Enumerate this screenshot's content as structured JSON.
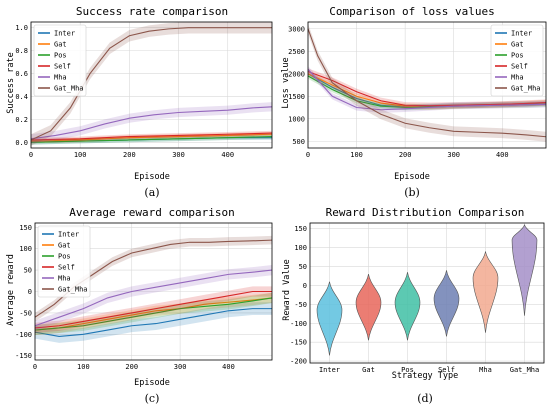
{
  "colors": {
    "Inter": "#1f77b4",
    "Gat": "#ff7f0e",
    "Pos": "#2ca02c",
    "Self": "#d62728",
    "Mha": "#9467bd",
    "Gat_Mha": "#8c564b",
    "violin": [
      "#5bc0de",
      "#e8665a",
      "#3fbfa5",
      "#6d7fb3",
      "#f2a98f",
      "#a58fc8"
    ]
  },
  "chart_data": [
    {
      "id": "a",
      "type": "line",
      "title": "Success rate comparison",
      "xlabel": "Episode",
      "ylabel": "Success rate",
      "caption": "(a)",
      "xlim": [
        0,
        490
      ],
      "ylim": [
        -0.05,
        1.05
      ],
      "xticks": [
        0,
        100,
        200,
        300,
        400
      ],
      "yticks": [
        0.0,
        0.2,
        0.4,
        0.6,
        0.8,
        1.0
      ],
      "ytick_labels": [
        "0.0",
        "0.2",
        "0.4",
        "0.6",
        "0.8",
        "1.0"
      ],
      "grid": true,
      "legend": "upper-left",
      "series": [
        {
          "name": "Inter",
          "x": [
            0,
            100,
            200,
            300,
            400,
            490
          ],
          "y": [
            0.0,
            0.01,
            0.02,
            0.03,
            0.04,
            0.04
          ],
          "band": 0.02
        },
        {
          "name": "Gat",
          "x": [
            0,
            100,
            200,
            300,
            400,
            490
          ],
          "y": [
            0.01,
            0.02,
            0.04,
            0.05,
            0.06,
            0.07
          ],
          "band": 0.02
        },
        {
          "name": "Pos",
          "x": [
            0,
            100,
            200,
            300,
            400,
            490
          ],
          "y": [
            0.0,
            0.01,
            0.02,
            0.03,
            0.04,
            0.05
          ],
          "band": 0.02
        },
        {
          "name": "Self",
          "x": [
            0,
            100,
            200,
            300,
            400,
            490
          ],
          "y": [
            0.02,
            0.03,
            0.05,
            0.06,
            0.07,
            0.08
          ],
          "band": 0.02
        },
        {
          "name": "Mha",
          "x": [
            0,
            50,
            100,
            150,
            200,
            250,
            300,
            350,
            400,
            450,
            490
          ],
          "y": [
            0.03,
            0.06,
            0.1,
            0.16,
            0.21,
            0.24,
            0.26,
            0.27,
            0.28,
            0.3,
            0.31
          ],
          "band": 0.04
        },
        {
          "name": "Gat_Mha",
          "x": [
            0,
            40,
            80,
            120,
            160,
            200,
            240,
            280,
            320,
            360,
            400,
            440,
            490
          ],
          "y": [
            0.02,
            0.1,
            0.3,
            0.6,
            0.82,
            0.93,
            0.97,
            0.99,
            1.0,
            1.0,
            1.0,
            1.0,
            1.0
          ],
          "band": 0.05
        }
      ]
    },
    {
      "id": "b",
      "type": "line",
      "title": "Comparison of loss values",
      "xlabel": "Episode",
      "ylabel": "Loss value",
      "caption": "(b)",
      "xlim": [
        0,
        490
      ],
      "ylim": [
        350,
        3150
      ],
      "xticks": [
        0,
        100,
        200,
        300,
        400
      ],
      "yticks": [
        500,
        1000,
        1500,
        2000,
        2500,
        3000
      ],
      "ytick_labels": [
        "500",
        "1000",
        "1500",
        "2000",
        "2500",
        "3000"
      ],
      "grid": true,
      "legend": "upper-right",
      "series": [
        {
          "name": "Inter",
          "x": [
            0,
            50,
            100,
            150,
            200,
            250,
            300,
            350,
            400,
            450,
            490
          ],
          "y": [
            2000,
            1700,
            1450,
            1300,
            1260,
            1280,
            1300,
            1310,
            1320,
            1330,
            1350
          ],
          "band": 60
        },
        {
          "name": "Gat",
          "x": [
            0,
            50,
            100,
            150,
            200,
            250,
            300,
            350,
            400,
            450,
            490
          ],
          "y": [
            2000,
            1750,
            1500,
            1350,
            1280,
            1260,
            1280,
            1300,
            1320,
            1340,
            1360
          ],
          "band": 60
        },
        {
          "name": "Pos",
          "x": [
            0,
            50,
            100,
            150,
            200,
            250,
            300,
            350,
            400,
            450,
            490
          ],
          "y": [
            1950,
            1650,
            1400,
            1280,
            1250,
            1260,
            1280,
            1290,
            1300,
            1310,
            1320
          ],
          "band": 60
        },
        {
          "name": "Self",
          "x": [
            0,
            50,
            100,
            150,
            200,
            250,
            300,
            350,
            400,
            450,
            490
          ],
          "y": [
            2050,
            1850,
            1600,
            1400,
            1300,
            1290,
            1300,
            1310,
            1320,
            1340,
            1360
          ],
          "band": 70
        },
        {
          "name": "Mha",
          "x": [
            0,
            50,
            100,
            150,
            200,
            250,
            300,
            350,
            400,
            450,
            490
          ],
          "y": [
            2100,
            1500,
            1250,
            1200,
            1220,
            1250,
            1280,
            1290,
            1300,
            1310,
            1320
          ],
          "band": 70
        },
        {
          "name": "Gat_Mha",
          "x": [
            0,
            20,
            50,
            100,
            150,
            200,
            250,
            300,
            350,
            400,
            450,
            490
          ],
          "y": [
            3000,
            2400,
            1800,
            1400,
            1100,
            900,
            800,
            720,
            700,
            680,
            640,
            600
          ],
          "band": 110
        }
      ]
    },
    {
      "id": "c",
      "type": "line",
      "title": "Average reward comparison",
      "xlabel": "Episode",
      "ylabel": "Average reward",
      "caption": "(c)",
      "xlim": [
        0,
        490
      ],
      "ylim": [
        -160,
        160
      ],
      "xticks": [
        0,
        100,
        200,
        300,
        400
      ],
      "yticks": [
        -150,
        -100,
        -50,
        0,
        50,
        100,
        150
      ],
      "ytick_labels": [
        "-150",
        "-100",
        "-50",
        "0",
        "50",
        "100",
        "150"
      ],
      "grid": true,
      "legend": "upper-left",
      "series": [
        {
          "name": "Inter",
          "x": [
            0,
            50,
            100,
            150,
            200,
            250,
            300,
            350,
            400,
            450,
            490
          ],
          "y": [
            -95,
            -105,
            -100,
            -90,
            -80,
            -75,
            -65,
            -55,
            -45,
            -40,
            -40
          ],
          "band": 15
        },
        {
          "name": "Gat",
          "x": [
            0,
            50,
            100,
            150,
            200,
            250,
            300,
            350,
            400,
            450,
            490
          ],
          "y": [
            -90,
            -85,
            -75,
            -65,
            -55,
            -45,
            -40,
            -30,
            -25,
            -20,
            -15
          ],
          "band": 12
        },
        {
          "name": "Pos",
          "x": [
            0,
            50,
            100,
            150,
            200,
            250,
            300,
            350,
            400,
            450,
            490
          ],
          "y": [
            -90,
            -85,
            -80,
            -70,
            -60,
            -50,
            -40,
            -35,
            -30,
            -22,
            -15
          ],
          "band": 12
        },
        {
          "name": "Self",
          "x": [
            0,
            50,
            100,
            150,
            200,
            250,
            300,
            350,
            400,
            450,
            490
          ],
          "y": [
            -85,
            -80,
            -70,
            -60,
            -50,
            -40,
            -30,
            -20,
            -10,
            0,
            0
          ],
          "band": 12
        },
        {
          "name": "Mha",
          "x": [
            0,
            50,
            100,
            150,
            200,
            250,
            300,
            350,
            400,
            450,
            490
          ],
          "y": [
            -80,
            -60,
            -40,
            -15,
            0,
            10,
            20,
            30,
            40,
            45,
            50
          ],
          "band": 12
        },
        {
          "name": "Gat_Mha",
          "x": [
            0,
            40,
            80,
            120,
            160,
            200,
            240,
            280,
            320,
            360,
            400,
            440,
            490
          ],
          "y": [
            -60,
            -30,
            10,
            40,
            70,
            90,
            100,
            110,
            115,
            115,
            117,
            118,
            120
          ],
          "band": 10
        }
      ]
    },
    {
      "id": "d",
      "type": "violin",
      "title": "Reward Distribution Comparison",
      "xlabel": "Strategy Type",
      "ylabel": "Reward Value",
      "caption": "(d)",
      "ylim": [
        -205,
        165
      ],
      "yticks": [
        -200,
        -150,
        -100,
        -50,
        0,
        50,
        100,
        150
      ],
      "ytick_labels": [
        "-200",
        "-150",
        "-100",
        "-50",
        "0",
        "50",
        "100",
        "150"
      ],
      "grid": true,
      "categories": [
        "Inter",
        "Gat",
        "Pos",
        "Self",
        "Mha",
        "Gat_Mha"
      ],
      "violins": [
        {
          "min": -185,
          "max": 10,
          "center": -65
        },
        {
          "min": -145,
          "max": 30,
          "center": -45
        },
        {
          "min": -145,
          "max": 35,
          "center": -45
        },
        {
          "min": -135,
          "max": 40,
          "center": -35
        },
        {
          "min": -125,
          "max": 90,
          "center": 20
        },
        {
          "min": -80,
          "max": 160,
          "center": 120
        }
      ]
    }
  ]
}
